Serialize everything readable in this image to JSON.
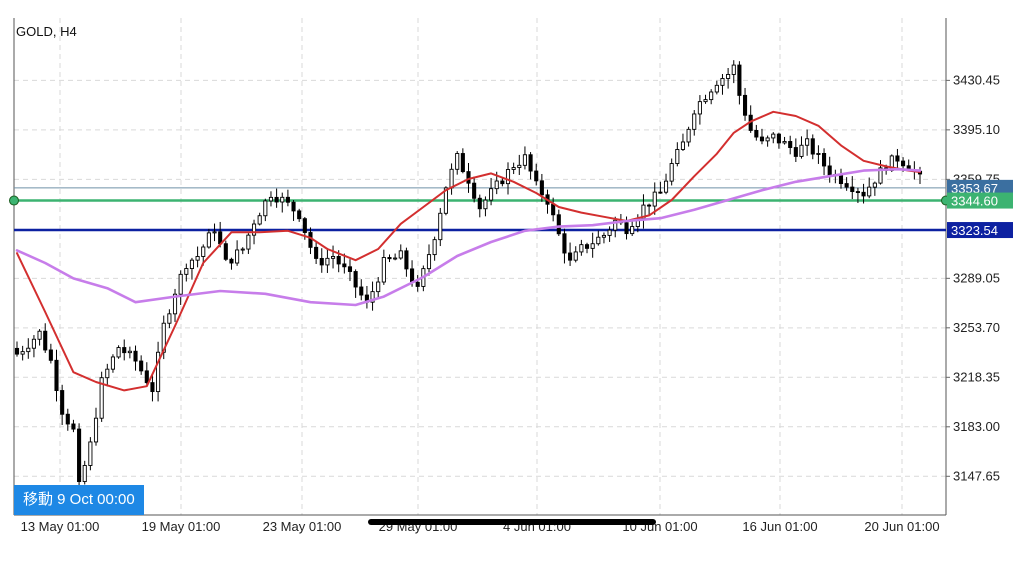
{
  "header": {
    "symbol": "GOLD, H4"
  },
  "badge": {
    "label": "移動 9 Oct 00:00"
  },
  "colors": {
    "background": "#ffffff",
    "grid": "#d9d9d9",
    "candle": "#000000",
    "ma_fast": "#d32f2f",
    "ma_slow": "#c77dea",
    "hline_green": "#3cb371",
    "hline_blue": "#0d21a1",
    "hline_steel": "#6f90a8",
    "price_tag_bg": "#3b6fa0"
  },
  "chart_data": {
    "type": "candlestick",
    "title": "GOLD, H4",
    "ylim": [
      3120,
      3475
    ],
    "y_ticks": [
      "3430.45",
      "3395.10",
      "3359.75",
      "3289.05",
      "3253.70",
      "3218.35",
      "3183.00",
      "3147.65"
    ],
    "x_ticks": [
      "13 May 01:00",
      "19 May 01:00",
      "23 May 01:00",
      "29 May 01:00",
      "4 Jun 01:00",
      "10 Jun 01:00",
      "16 Jun 01:00",
      "20 Jun 01:00"
    ],
    "horizontal_lines": [
      {
        "value": 3353.67,
        "label": "3353.67",
        "color": "#6f90a8"
      },
      {
        "value": 3344.6,
        "label": "3344.60",
        "color": "#3cb371"
      },
      {
        "value": 3323.54,
        "label": "3323.54",
        "color": "#0d21a1"
      }
    ],
    "close_path": [
      [
        0,
        3235
      ],
      [
        4,
        3250
      ],
      [
        6,
        3230
      ],
      [
        8,
        3195
      ],
      [
        10,
        3180
      ],
      [
        11,
        3140
      ],
      [
        13,
        3170
      ],
      [
        15,
        3215
      ],
      [
        18,
        3240
      ],
      [
        21,
        3230
      ],
      [
        24,
        3210
      ],
      [
        26,
        3255
      ],
      [
        28,
        3280
      ],
      [
        30,
        3300
      ],
      [
        32,
        3305
      ],
      [
        35,
        3325
      ],
      [
        37,
        3300
      ],
      [
        40,
        3310
      ],
      [
        42,
        3330
      ],
      [
        45,
        3350
      ],
      [
        47,
        3345
      ],
      [
        50,
        3335
      ],
      [
        53,
        3300
      ],
      [
        56,
        3305
      ],
      [
        59,
        3290
      ],
      [
        62,
        3270
      ],
      [
        65,
        3300
      ],
      [
        68,
        3305
      ],
      [
        71,
        3280
      ],
      [
        74,
        3320
      ],
      [
        76,
        3355
      ],
      [
        78,
        3375
      ],
      [
        80,
        3360
      ],
      [
        82,
        3340
      ],
      [
        85,
        3355
      ],
      [
        88,
        3370
      ],
      [
        90,
        3375
      ],
      [
        92,
        3355
      ],
      [
        94,
        3345
      ],
      [
        96,
        3320
      ],
      [
        98,
        3300
      ],
      [
        100,
        3310
      ],
      [
        102,
        3315
      ],
      [
        104,
        3320
      ],
      [
        106,
        3330
      ],
      [
        108,
        3325
      ],
      [
        111,
        3340
      ],
      [
        114,
        3350
      ],
      [
        116,
        3370
      ],
      [
        118,
        3385
      ],
      [
        120,
        3410
      ],
      [
        122,
        3420
      ],
      [
        124,
        3430
      ],
      [
        126,
        3435
      ],
      [
        127,
        3440
      ],
      [
        128,
        3420
      ],
      [
        130,
        3395
      ],
      [
        132,
        3385
      ],
      [
        134,
        3390
      ],
      [
        136,
        3385
      ],
      [
        138,
        3380
      ],
      [
        140,
        3385
      ],
      [
        142,
        3375
      ],
      [
        144,
        3365
      ],
      [
        146,
        3360
      ],
      [
        148,
        3355
      ],
      [
        150,
        3350
      ],
      [
        152,
        3360
      ],
      [
        154,
        3370
      ],
      [
        156,
        3375
      ],
      [
        158,
        3370
      ],
      [
        160,
        3360
      ]
    ],
    "series": [
      {
        "name": "",
        "color": "#d32f2f",
        "values": [
          [
            0,
            3307
          ],
          [
            5,
            3265
          ],
          [
            10,
            3222
          ],
          [
            14,
            3215
          ],
          [
            19,
            3209
          ],
          [
            23,
            3212
          ],
          [
            28,
            3255
          ],
          [
            33,
            3300
          ],
          [
            38,
            3322
          ],
          [
            43,
            3322
          ],
          [
            48,
            3323
          ],
          [
            52,
            3318
          ],
          [
            55,
            3310
          ],
          [
            60,
            3302
          ],
          [
            64,
            3310
          ],
          [
            68,
            3328
          ],
          [
            72,
            3340
          ],
          [
            76,
            3352
          ],
          [
            80,
            3360
          ],
          [
            84,
            3364
          ],
          [
            88,
            3358
          ],
          [
            92,
            3350
          ],
          [
            96,
            3340
          ],
          [
            100,
            3336
          ],
          [
            104,
            3333
          ],
          [
            108,
            3330
          ],
          [
            112,
            3334
          ],
          [
            116,
            3345
          ],
          [
            120,
            3362
          ],
          [
            124,
            3378
          ],
          [
            127,
            3393
          ],
          [
            130,
            3401
          ],
          [
            134,
            3408
          ],
          [
            138,
            3405
          ],
          [
            142,
            3398
          ],
          [
            146,
            3384
          ],
          [
            150,
            3373
          ],
          [
            154,
            3369
          ],
          [
            158,
            3366
          ],
          [
            160,
            3365
          ]
        ]
      },
      {
        "name": "",
        "color": "#c77dea",
        "values": [
          [
            0,
            3309
          ],
          [
            5,
            3300
          ],
          [
            10,
            3289
          ],
          [
            16,
            3282
          ],
          [
            21,
            3272
          ],
          [
            28,
            3276
          ],
          [
            36,
            3280
          ],
          [
            44,
            3278
          ],
          [
            52,
            3272
          ],
          [
            60,
            3270
          ],
          [
            65,
            3276
          ],
          [
            72,
            3290
          ],
          [
            78,
            3305
          ],
          [
            84,
            3315
          ],
          [
            90,
            3323
          ],
          [
            96,
            3326
          ],
          [
            102,
            3327
          ],
          [
            108,
            3330
          ],
          [
            114,
            3332
          ],
          [
            120,
            3338
          ],
          [
            126,
            3345
          ],
          [
            132,
            3352
          ],
          [
            138,
            3358
          ],
          [
            144,
            3362
          ],
          [
            150,
            3366
          ],
          [
            156,
            3367
          ],
          [
            160,
            3366
          ]
        ]
      }
    ],
    "grid": true,
    "legend": "none"
  }
}
